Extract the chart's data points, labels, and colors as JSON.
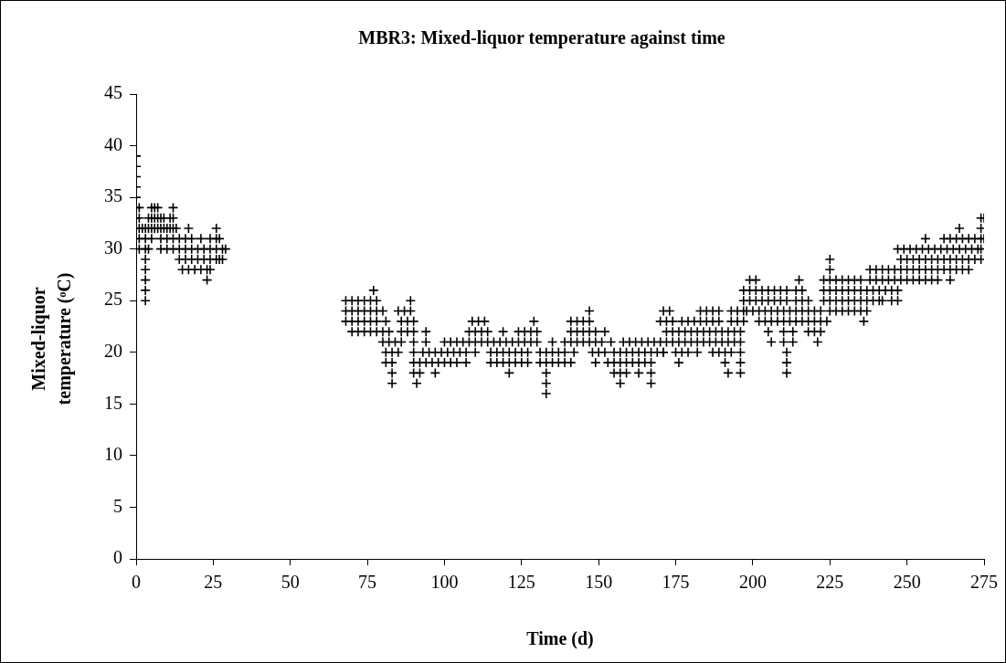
{
  "chart_data": {
    "type": "scatter",
    "title": "MBR3: Mixed-liquor temperature against time",
    "xlabel": "Time (d)",
    "ylabel": "Mixed-liquor temperature (ᵒC)",
    "xlim": [
      0,
      275
    ],
    "xticks": [
      0,
      25,
      50,
      75,
      100,
      125,
      150,
      175,
      200,
      225,
      250,
      275
    ],
    "ylim": [
      0,
      45
    ],
    "yticks": [
      0,
      5,
      10,
      15,
      20,
      25,
      30,
      35,
      40,
      45
    ],
    "grid": false,
    "legend": false,
    "marker": "cross",
    "series": [
      {
        "color": "#000000",
        "x": [
          0,
          0,
          0,
          0,
          0,
          0,
          1,
          5,
          6,
          7,
          12,
          0,
          1,
          4,
          5,
          6,
          7,
          8,
          9,
          11,
          12,
          0,
          1,
          2,
          3,
          4,
          5,
          6,
          7,
          8,
          9,
          10,
          11,
          12,
          13,
          17,
          26,
          1,
          3,
          5,
          8,
          10,
          12,
          14,
          16,
          18,
          21,
          24,
          26,
          27,
          1,
          3,
          4,
          8,
          10,
          12,
          14,
          16,
          18,
          20,
          22,
          24,
          26,
          28,
          29,
          3,
          14,
          16,
          18,
          20,
          22,
          24,
          26,
          27,
          28,
          3,
          15,
          17,
          19,
          21,
          23,
          24,
          3,
          23,
          3,
          3,
          77,
          68,
          70,
          72,
          74,
          76,
          78,
          89,
          68,
          70,
          72,
          74,
          76,
          78,
          80,
          85,
          87,
          89,
          147,
          68,
          70,
          72,
          74,
          76,
          78,
          81,
          86,
          88,
          90,
          109,
          111,
          113,
          129,
          141,
          143,
          145,
          147,
          170,
          70,
          72,
          74,
          76,
          78,
          80,
          82,
          86,
          88,
          90,
          94,
          108,
          110,
          112,
          114,
          119,
          124,
          126,
          128,
          130,
          141,
          143,
          145,
          147,
          149,
          152,
          80,
          82,
          84,
          86,
          90,
          94,
          100,
          102,
          104,
          106,
          108,
          110,
          112,
          114,
          116,
          118,
          120,
          122,
          124,
          126,
          128,
          130,
          135,
          139,
          141,
          143,
          145,
          147,
          149,
          151,
          154,
          158,
          160,
          162,
          164,
          166,
          168,
          170,
          81,
          83,
          85,
          90,
          93,
          95,
          97,
          99,
          101,
          103,
          105,
          107,
          110,
          115,
          117,
          119,
          121,
          123,
          125,
          127,
          131,
          133,
          135,
          137,
          139,
          142,
          148,
          150,
          152,
          155,
          157,
          159,
          161,
          163,
          165,
          167,
          169,
          171,
          81,
          83,
          90,
          92,
          94,
          96,
          98,
          100,
          102,
          104,
          107,
          115,
          117,
          119,
          121,
          123,
          125,
          127,
          131,
          133,
          135,
          137,
          139,
          141,
          149,
          153,
          155,
          157,
          159,
          161,
          163,
          165,
          167,
          83,
          90,
          92,
          97,
          121,
          133,
          155,
          157,
          159,
          163,
          167,
          83,
          91,
          133,
          157,
          167,
          133,
          171,
          173,
          183,
          185,
          187,
          189,
          193,
          195,
          197,
          198,
          200,
          202,
          204,
          206,
          208,
          210,
          212,
          214,
          216,
          218,
          220,
          222,
          225,
          227,
          229,
          231,
          233,
          235,
          237,
          172,
          174,
          177,
          179,
          181,
          183,
          185,
          187,
          189,
          193,
          195,
          197,
          202,
          204,
          206,
          208,
          210,
          212,
          214,
          216,
          218,
          220,
          222,
          224,
          236,
          172,
          174,
          176,
          178,
          180,
          182,
          184,
          186,
          188,
          190,
          192,
          194,
          196,
          205,
          210,
          213,
          218,
          220,
          222,
          172,
          174,
          176,
          178,
          180,
          182,
          184,
          186,
          188,
          190,
          192,
          194,
          196,
          206,
          210,
          213,
          221,
          171,
          175,
          177,
          179,
          182,
          187,
          189,
          191,
          193,
          196,
          211,
          176,
          191,
          196,
          211,
          192,
          196,
          211,
          197,
          199,
          201,
          203,
          205,
          207,
          209,
          211,
          214,
          216,
          218,
          223,
          225,
          227,
          229,
          231,
          233,
          235,
          237,
          239,
          241,
          242,
          245,
          247,
          197,
          199,
          201,
          203,
          205,
          207,
          209,
          211,
          214,
          216,
          223,
          225,
          227,
          229,
          231,
          233,
          235,
          237,
          239,
          241,
          243,
          245,
          247,
          199,
          201,
          215,
          223,
          225,
          227,
          229,
          231,
          233,
          235,
          238,
          240,
          242,
          244,
          246,
          248,
          250,
          252,
          254,
          256,
          258,
          260,
          264,
          225,
          238,
          240,
          242,
          244,
          246,
          248,
          250,
          252,
          254,
          256,
          258,
          260,
          262,
          264,
          266,
          268,
          270,
          225,
          248,
          250,
          252,
          254,
          256,
          258,
          260,
          262,
          264,
          266,
          268,
          270,
          272,
          274,
          247,
          249,
          251,
          253,
          255,
          257,
          259,
          261,
          263,
          265,
          267,
          269,
          271,
          273,
          274,
          256,
          262,
          264,
          266,
          268,
          270,
          272,
          274,
          275,
          267,
          274,
          274,
          275
        ],
        "values": [
          39,
          38,
          37,
          36,
          35,
          34,
          34,
          34,
          34,
          34,
          34,
          33,
          33,
          33,
          33,
          33,
          33,
          33,
          33,
          33,
          33,
          32,
          32,
          32,
          32,
          32,
          32,
          32,
          32,
          32,
          32,
          32,
          32,
          32,
          32,
          32,
          32,
          31,
          31,
          31,
          31,
          31,
          31,
          31,
          31,
          31,
          31,
          31,
          31,
          31,
          30,
          30,
          30,
          30,
          30,
          30,
          30,
          30,
          30,
          30,
          30,
          30,
          30,
          30,
          30,
          29,
          29,
          29,
          29,
          29,
          29,
          29,
          29,
          29,
          29,
          28,
          28,
          28,
          28,
          28,
          28,
          28,
          27,
          27,
          26,
          25,
          26,
          25,
          25,
          25,
          25,
          25,
          25,
          25,
          24,
          24,
          24,
          24,
          24,
          24,
          24,
          24,
          24,
          24,
          24,
          23,
          23,
          23,
          23,
          23,
          23,
          23,
          23,
          23,
          23,
          23,
          23,
          23,
          23,
          23,
          23,
          23,
          23,
          23,
          22,
          22,
          22,
          22,
          22,
          22,
          22,
          22,
          22,
          22,
          22,
          22,
          22,
          22,
          22,
          22,
          22,
          22,
          22,
          22,
          22,
          22,
          22,
          22,
          22,
          22,
          21,
          21,
          21,
          21,
          21,
          21,
          21,
          21,
          21,
          21,
          21,
          21,
          21,
          21,
          21,
          21,
          21,
          21,
          21,
          21,
          21,
          21,
          21,
          21,
          21,
          21,
          21,
          21,
          21,
          21,
          21,
          21,
          21,
          21,
          21,
          21,
          21,
          21,
          20,
          20,
          20,
          20,
          20,
          20,
          20,
          20,
          20,
          20,
          20,
          20,
          20,
          20,
          20,
          20,
          20,
          20,
          20,
          20,
          20,
          20,
          20,
          20,
          20,
          20,
          20,
          20,
          20,
          20,
          20,
          20,
          20,
          20,
          20,
          20,
          20,
          20,
          19,
          19,
          19,
          19,
          19,
          19,
          19,
          19,
          19,
          19,
          19,
          19,
          19,
          19,
          19,
          19,
          19,
          19,
          19,
          19,
          19,
          19,
          19,
          19,
          19,
          19,
          19,
          19,
          19,
          19,
          19,
          19,
          19,
          18,
          18,
          18,
          18,
          18,
          18,
          18,
          18,
          18,
          18,
          18,
          17,
          17,
          17,
          17,
          17,
          16,
          24,
          24,
          24,
          24,
          24,
          24,
          24,
          24,
          24,
          24,
          24,
          24,
          24,
          24,
          24,
          24,
          24,
          24,
          24,
          24,
          24,
          24,
          24,
          24,
          24,
          24,
          24,
          24,
          24,
          23,
          23,
          23,
          23,
          23,
          23,
          23,
          23,
          23,
          23,
          23,
          23,
          23,
          23,
          23,
          23,
          23,
          23,
          23,
          23,
          23,
          23,
          23,
          23,
          23,
          22,
          22,
          22,
          22,
          22,
          22,
          22,
          22,
          22,
          22,
          22,
          22,
          22,
          22,
          22,
          22,
          22,
          22,
          22,
          21,
          21,
          21,
          21,
          21,
          21,
          21,
          21,
          21,
          21,
          21,
          21,
          21,
          21,
          21,
          21,
          21,
          20,
          20,
          20,
          20,
          20,
          20,
          20,
          20,
          20,
          20,
          20,
          19,
          19,
          19,
          19,
          18,
          18,
          18,
          25,
          25,
          25,
          25,
          25,
          25,
          25,
          25,
          25,
          25,
          25,
          25,
          25,
          25,
          25,
          25,
          25,
          25,
          25,
          25,
          25,
          25,
          25,
          25,
          26,
          26,
          26,
          26,
          26,
          26,
          26,
          26,
          26,
          26,
          26,
          26,
          26,
          26,
          26,
          26,
          26,
          26,
          26,
          26,
          26,
          26,
          26,
          27,
          27,
          27,
          27,
          27,
          27,
          27,
          27,
          27,
          27,
          27,
          27,
          27,
          27,
          27,
          27,
          27,
          27,
          27,
          27,
          27,
          27,
          27,
          28,
          28,
          28,
          28,
          28,
          28,
          28,
          28,
          28,
          28,
          28,
          28,
          28,
          28,
          28,
          28,
          28,
          28,
          29,
          29,
          29,
          29,
          29,
          29,
          29,
          29,
          29,
          29,
          29,
          29,
          29,
          29,
          29,
          30,
          30,
          30,
          30,
          30,
          30,
          30,
          30,
          30,
          30,
          30,
          30,
          30,
          30,
          30,
          31,
          31,
          31,
          31,
          31,
          31,
          31,
          31,
          31,
          32,
          32,
          33,
          33
        ]
      }
    ]
  }
}
